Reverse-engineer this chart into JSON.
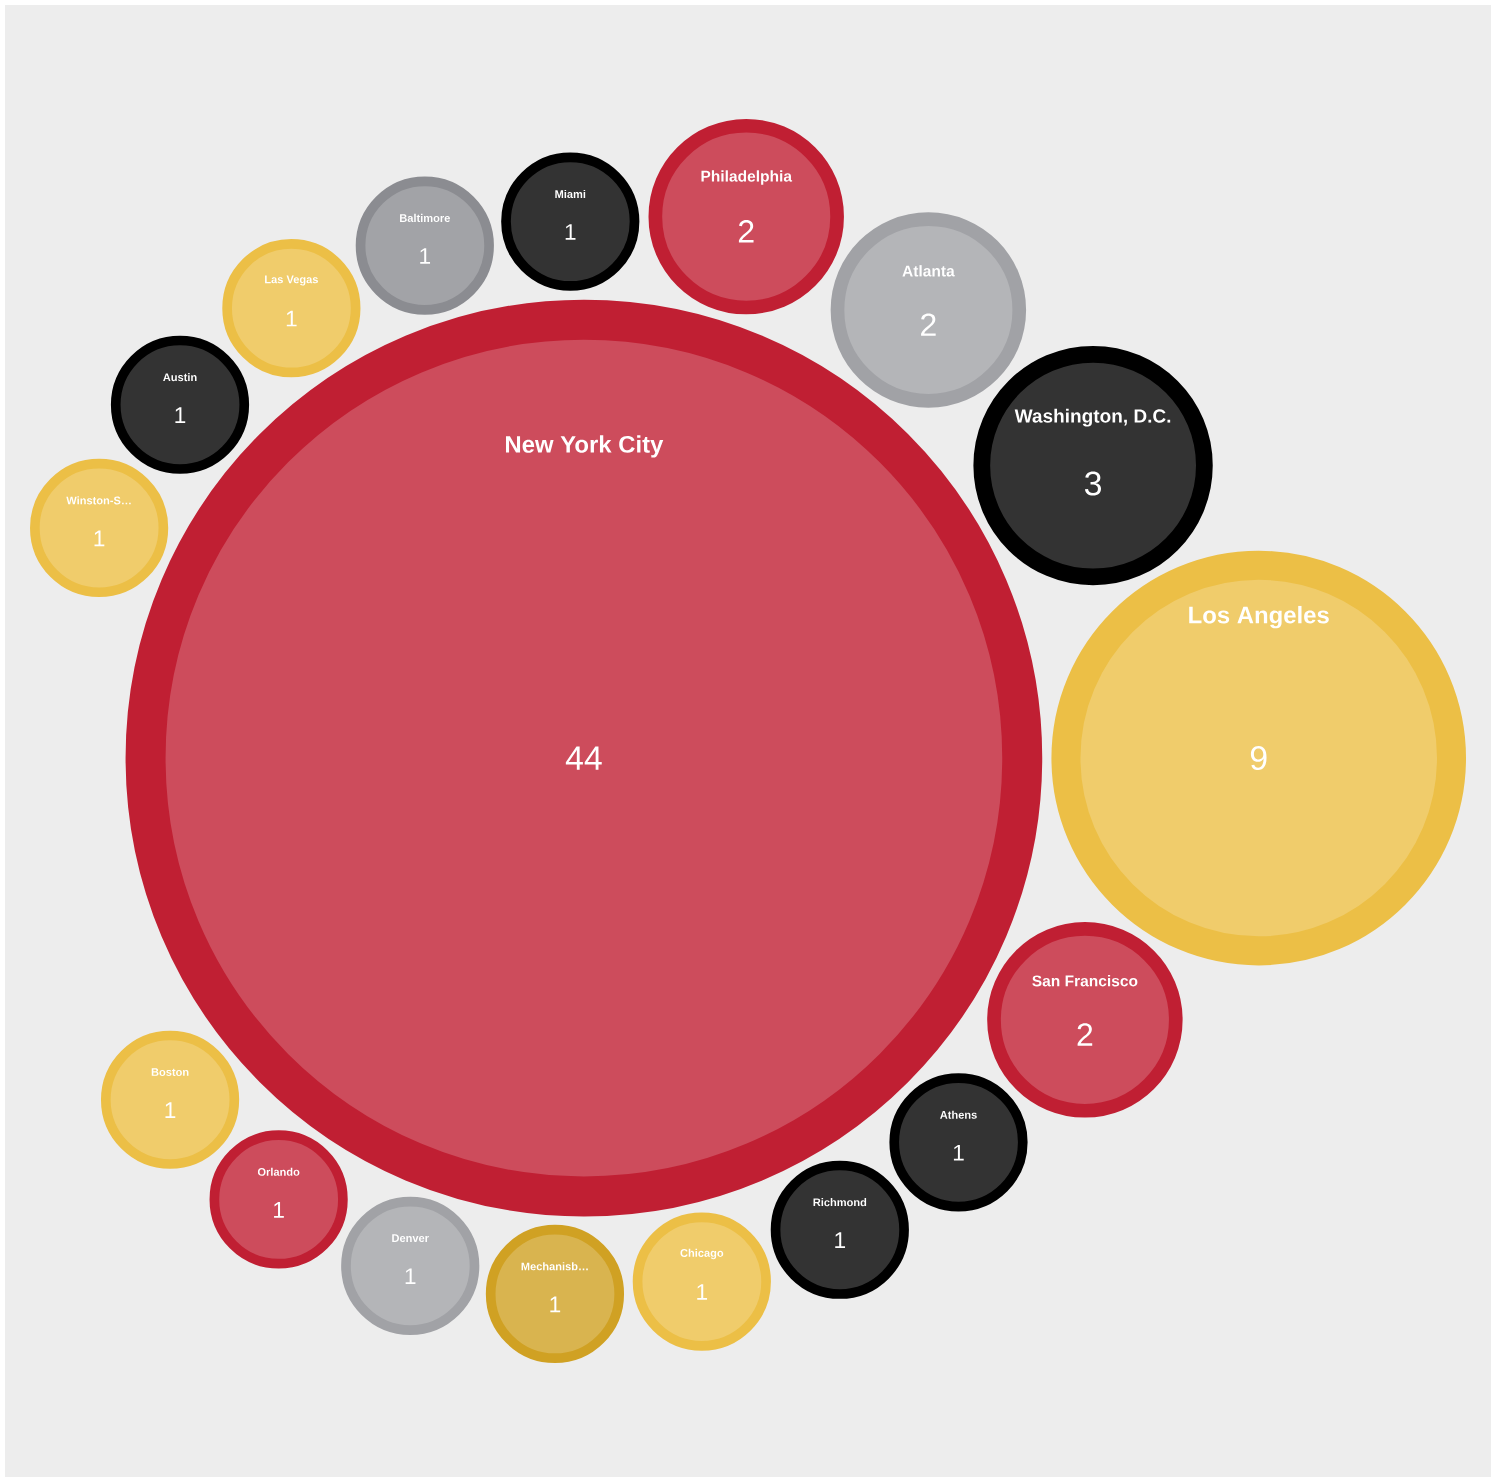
{
  "chart_data": {
    "type": "other",
    "categories": [
      "New York City",
      "Los Angeles",
      "Washington, D.C.",
      "San Francisco",
      "Atlanta",
      "Philadelphia",
      "Athens",
      "Richmond",
      "Chicago",
      "Miami",
      "Mechanisb…",
      "Denver",
      "Baltimore",
      "Las Vegas",
      "Orlando",
      "Boston",
      "Austin",
      "Winston-S…"
    ],
    "values": [
      44,
      9,
      3,
      2,
      2,
      2,
      1,
      1,
      1,
      1,
      1,
      1,
      1,
      1,
      1,
      1,
      1,
      1
    ],
    "colors": [
      "#cd4c5c",
      "#f0cc6b",
      "#333333",
      "#cd4c5c",
      "#b4b5b8",
      "#cd4c5c",
      "#333333",
      "#333333",
      "#f0cc6b",
      "#333333",
      "#d9b44f",
      "#b4b5b8",
      "#a2a3a7",
      "#f0cc6b",
      "#cd4c5c",
      "#f0cc6b",
      "#333333",
      "#f0cc6b"
    ],
    "data_labels": true
  }
}
